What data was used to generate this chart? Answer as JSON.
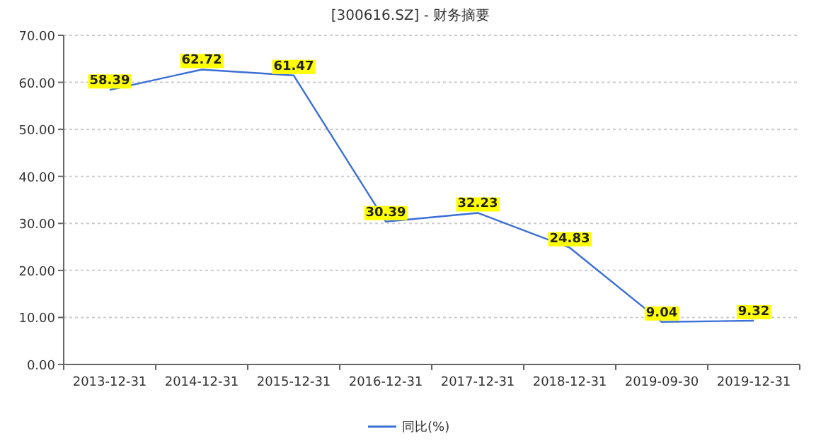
{
  "chart_data": {
    "type": "line",
    "title": "[300616.SZ] - 财务摘要",
    "categories": [
      "2013-12-31",
      "2014-12-31",
      "2015-12-31",
      "2016-12-31",
      "2017-12-31",
      "2018-12-31",
      "2019-09-30",
      "2019-12-31"
    ],
    "series": [
      {
        "name": "同比(%)",
        "color": "#3b6fd6",
        "values": [
          58.39,
          62.72,
          61.47,
          30.39,
          32.23,
          24.83,
          9.04,
          9.32
        ]
      }
    ],
    "ylim": [
      0,
      70
    ],
    "yticks": [
      {
        "value": 0,
        "label": "0.00"
      },
      {
        "value": 10,
        "label": "10.00"
      },
      {
        "value": 20,
        "label": "20.00"
      },
      {
        "value": 30,
        "label": "30.00"
      },
      {
        "value": 40,
        "label": "40.00"
      },
      {
        "value": 50,
        "label": "50.00"
      },
      {
        "value": 60,
        "label": "60.00"
      },
      {
        "value": 70,
        "label": "70.00"
      }
    ],
    "grid": "y",
    "legend": "bottom",
    "data_labels": true,
    "marker": "none",
    "line_style": "solid"
  }
}
